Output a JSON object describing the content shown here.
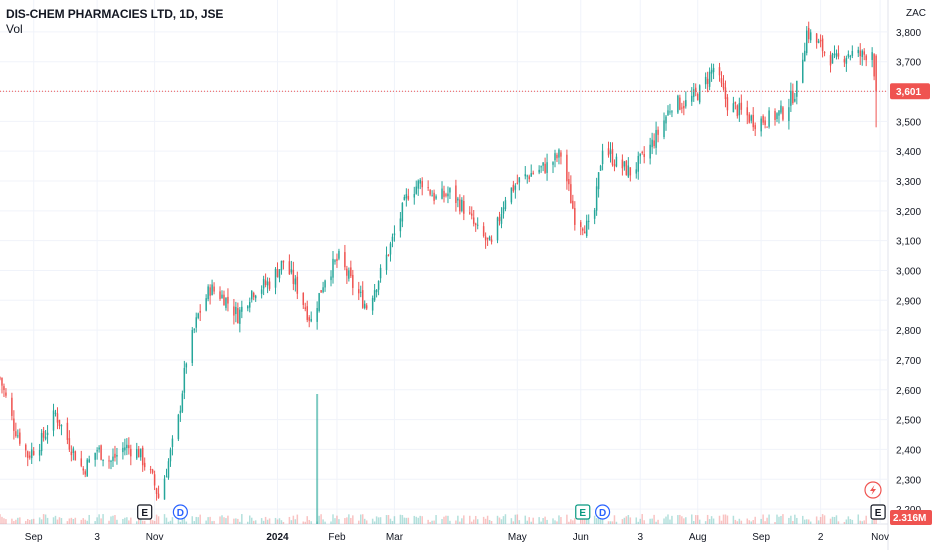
{
  "header": {
    "title": "DIS-CHEM PHARMACIES LTD, 1D, JSE",
    "volume_label": "Vol",
    "currency": "ZAC"
  },
  "colors": {
    "up": "#26a69a",
    "down": "#ef5350",
    "price_line": "#ef5350",
    "grid": "#f0f3fa",
    "axis_text": "#131722"
  },
  "events": [
    {
      "label": "E",
      "kind": "earnings",
      "color": "#131722",
      "date": "2023-10-27"
    },
    {
      "label": "D",
      "kind": "dividend",
      "color": "#2962ff",
      "date": "2023-11-14"
    },
    {
      "label": "E",
      "kind": "earnings",
      "color": "#089981",
      "date": "2024-06-04"
    },
    {
      "label": "D",
      "kind": "dividend",
      "color": "#2962ff",
      "date": "2024-06-14"
    },
    {
      "label": "E",
      "kind": "earnings",
      "color": "#131722",
      "date": "2024-10-31"
    }
  ],
  "flash_icon": "lightning-icon",
  "chart_data": {
    "type": "candlestick",
    "title": "DIS-CHEM PHARMACIES LTD, 1D, JSE",
    "interval": "1D",
    "y_axis": {
      "ticks": [
        "3,800",
        "3,700",
        "3,600",
        "3,500",
        "3,400",
        "3,300",
        "3,200",
        "3,100",
        "3,000",
        "2,900",
        "2,800",
        "2,700",
        "2,600",
        "2,500",
        "2,400",
        "2,300",
        "2,200"
      ],
      "range": [
        2150,
        3880
      ]
    },
    "x_axis": {
      "labels": [
        "Sep",
        "3",
        "Nov",
        "2024",
        "Feb",
        "Mar",
        "May",
        "Jun",
        "3",
        "Aug",
        "Sep",
        "2",
        "Nov"
      ],
      "label_dates": [
        "2023-09-01",
        "2023-10-03",
        "2023-11-01",
        "2024-01-02",
        "2024-02-01",
        "2024-03-01",
        "2024-05-02",
        "2024-06-03",
        "2024-07-03",
        "2024-08-01",
        "2024-09-02",
        "2024-10-02",
        "2024-11-01"
      ],
      "range": [
        "2023-08-15",
        "2024-11-05"
      ]
    },
    "last_price": "3,601",
    "last_price_value": 3601,
    "last_volume": "2.316M",
    "volume_spike": {
      "date": "2024-01-22",
      "label": "largest volume bar"
    },
    "price_path": [
      [
        "2023-08-15",
        2640
      ],
      [
        "2023-08-22",
        2480
      ],
      [
        "2023-08-29",
        2380
      ],
      [
        "2023-09-05",
        2430
      ],
      [
        "2023-09-12",
        2520
      ],
      [
        "2023-09-19",
        2420
      ],
      [
        "2023-09-26",
        2330
      ],
      [
        "2023-10-03",
        2400
      ],
      [
        "2023-10-10",
        2360
      ],
      [
        "2023-10-17",
        2410
      ],
      [
        "2023-10-24",
        2390
      ],
      [
        "2023-10-31",
        2300
      ],
      [
        "2023-11-03",
        2240
      ],
      [
        "2023-11-07",
        2330
      ],
      [
        "2023-11-13",
        2500
      ],
      [
        "2023-11-17",
        2700
      ],
      [
        "2023-11-23",
        2850
      ],
      [
        "2023-11-29",
        2940
      ],
      [
        "2023-12-06",
        2910
      ],
      [
        "2023-12-13",
        2850
      ],
      [
        "2023-12-20",
        2930
      ],
      [
        "2023-12-29",
        2960
      ],
      [
        "2024-01-05",
        3030
      ],
      [
        "2024-01-12",
        2940
      ],
      [
        "2024-01-19",
        2830
      ],
      [
        "2024-01-26",
        2980
      ],
      [
        "2024-02-02",
        3040
      ],
      [
        "2024-02-09",
        2950
      ],
      [
        "2024-02-16",
        2880
      ],
      [
        "2024-02-23",
        2990
      ],
      [
        "2024-03-01",
        3120
      ],
      [
        "2024-03-08",
        3260
      ],
      [
        "2024-03-15",
        3300
      ],
      [
        "2024-03-22",
        3240
      ],
      [
        "2024-03-29",
        3260
      ],
      [
        "2024-04-05",
        3210
      ],
      [
        "2024-04-12",
        3130
      ],
      [
        "2024-04-19",
        3080
      ],
      [
        "2024-04-26",
        3250
      ],
      [
        "2024-05-03",
        3300
      ],
      [
        "2024-05-10",
        3330
      ],
      [
        "2024-05-17",
        3350
      ],
      [
        "2024-05-24",
        3390
      ],
      [
        "2024-05-31",
        3180
      ],
      [
        "2024-06-07",
        3140
      ],
      [
        "2024-06-10",
        3200
      ],
      [
        "2024-06-14",
        3420
      ],
      [
        "2024-06-21",
        3360
      ],
      [
        "2024-06-28",
        3330
      ],
      [
        "2024-07-05",
        3380
      ],
      [
        "2024-07-12",
        3460
      ],
      [
        "2024-07-19",
        3560
      ],
      [
        "2024-07-26",
        3560
      ],
      [
        "2024-08-02",
        3600
      ],
      [
        "2024-08-09",
        3680
      ],
      [
        "2024-08-16",
        3560
      ],
      [
        "2024-08-23",
        3530
      ],
      [
        "2024-08-30",
        3500
      ],
      [
        "2024-09-06",
        3510
      ],
      [
        "2024-09-13",
        3530
      ],
      [
        "2024-09-20",
        3610
      ],
      [
        "2024-09-25",
        3800
      ],
      [
        "2024-10-02",
        3750
      ],
      [
        "2024-10-09",
        3700
      ],
      [
        "2024-10-16",
        3730
      ],
      [
        "2024-10-23",
        3720
      ],
      [
        "2024-10-28",
        3740
      ],
      [
        "2024-10-30",
        3601
      ]
    ]
  }
}
